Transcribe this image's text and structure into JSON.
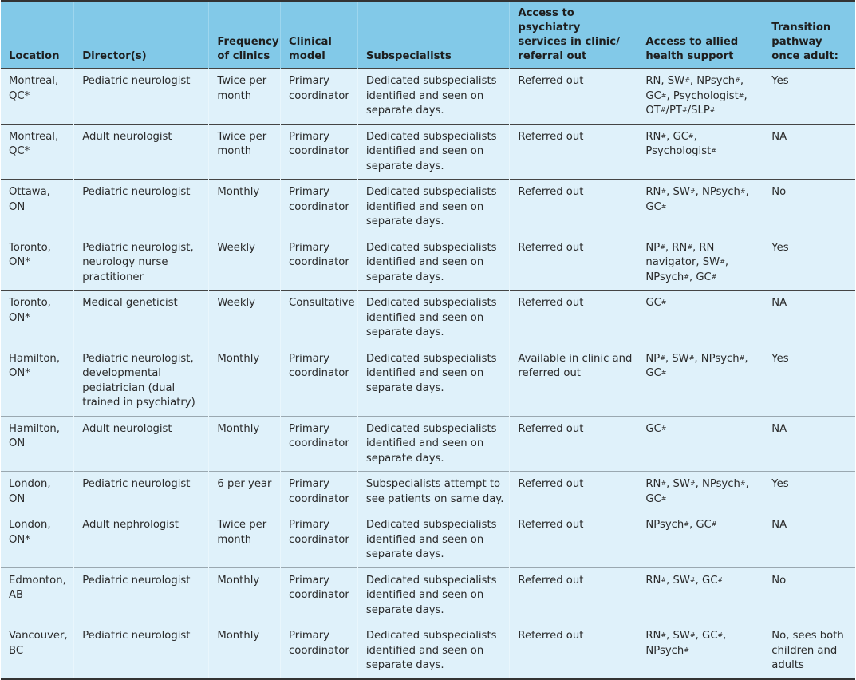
{
  "table": {
    "headers": [
      "Location",
      "Director(s)",
      "Frequency of clinics",
      "Clinical model",
      "Subspecialists",
      "Access to psychiatry services in clinic/ referral out",
      "Access to allied health support",
      "Transition pathway once adult:"
    ],
    "rows": [
      {
        "location": "Montreal, QC*",
        "directors": "Pediatric neurologist",
        "frequency": "Twice per month",
        "model": "Primary coordinator",
        "subspecialists": "Dedicated subspecialists identified and seen on separate days.",
        "psychiatry": "Referred out",
        "allied": [
          {
            "t": "RN",
            "sup": ""
          },
          {
            "t": ", SW",
            "sup": "#"
          },
          {
            "t": ", NPsych",
            "sup": "#"
          },
          {
            "t": ", GC",
            "sup": "#"
          },
          {
            "t": ", Psychologist",
            "sup": "#"
          },
          {
            "t": ", OT",
            "sup": "#"
          },
          {
            "t": "/PT",
            "sup": "#"
          },
          {
            "t": "/SLP",
            "sup": "#"
          }
        ],
        "transition": "Yes",
        "separator": "dark"
      },
      {
        "location": "Montreal, QC*",
        "directors": "Adult neurologist",
        "frequency": "Twice per month",
        "model": "Primary coordinator",
        "subspecialists": "Dedicated subspecialists identified and seen on separate days.",
        "psychiatry": "Referred out",
        "allied": [
          {
            "t": "RN",
            "sup": "#"
          },
          {
            "t": ", GC",
            "sup": "#"
          },
          {
            "t": ", Psychologist",
            "sup": "#"
          }
        ],
        "transition": "NA",
        "separator": "dark"
      },
      {
        "location": "Ottawa, ON",
        "directors": "Pediatric neurologist",
        "frequency": "Monthly",
        "model": "Primary coordinator",
        "subspecialists": "Dedicated subspecialists identified and seen on separate days.",
        "psychiatry": "Referred out",
        "allied": [
          {
            "t": "RN",
            "sup": "#"
          },
          {
            "t": ", SW",
            "sup": "#"
          },
          {
            "t": ", NPsych",
            "sup": "#"
          },
          {
            "t": ", GC",
            "sup": "#"
          }
        ],
        "transition": "No",
        "separator": "dark"
      },
      {
        "location": "Toronto, ON*",
        "directors": "Pediatric neurologist, neurology nurse practitioner",
        "frequency": "Weekly",
        "model": "Primary coordinator",
        "subspecialists": "Dedicated subspecialists identified and seen on separate days.",
        "psychiatry": "Referred out",
        "allied": [
          {
            "t": "NP",
            "sup": "#"
          },
          {
            "t": ", RN",
            "sup": "#"
          },
          {
            "t": ", RN navigator, SW",
            "sup": "#"
          },
          {
            "t": ", NPsych",
            "sup": "#"
          },
          {
            "t": ", GC",
            "sup": "#"
          }
        ],
        "transition": "Yes",
        "separator": "dark"
      },
      {
        "location": "Toronto, ON*",
        "directors": "Medical geneticist",
        "frequency": "Weekly",
        "model": "Consultative",
        "subspecialists": "Dedicated subspecialists identified and seen on separate days.",
        "psychiatry": "Referred out",
        "allied": [
          {
            "t": "GC",
            "sup": "#"
          }
        ],
        "transition": "NA",
        "separator": "light"
      },
      {
        "location": "Hamilton, ON*",
        "directors": "Pediatric neurologist, developmental pediatrician (dual trained in psychiatry)",
        "frequency": "Monthly",
        "model": "Primary coordinator",
        "subspecialists": "Dedicated subspecialists identified and seen on separate days.",
        "psychiatry": "Available in clinic and referred out",
        "allied": [
          {
            "t": "NP",
            "sup": "#"
          },
          {
            "t": ", SW",
            "sup": "#"
          },
          {
            "t": ", NPsych",
            "sup": "#"
          },
          {
            "t": ", GC",
            "sup": "#"
          }
        ],
        "transition": "Yes",
        "separator": "light"
      },
      {
        "location": "Hamilton, ON",
        "directors": "Adult neurologist",
        "frequency": "Monthly",
        "model": "Primary coordinator",
        "subspecialists": "Dedicated subspecialists identified and seen on separate days.",
        "psychiatry": "Referred out",
        "allied": [
          {
            "t": "GC",
            "sup": "#"
          }
        ],
        "transition": "NA",
        "separator": "light"
      },
      {
        "location": "London, ON",
        "directors": "Pediatric neurologist",
        "frequency": "6 per year",
        "model": "Primary coordinator",
        "subspecialists": "Subspecialists attempt to see patients on same day.",
        "psychiatry": "Referred out",
        "allied": [
          {
            "t": "RN",
            "sup": "#"
          },
          {
            "t": ", SW",
            "sup": "#"
          },
          {
            "t": ", NPsych",
            "sup": "#"
          },
          {
            "t": ", GC",
            "sup": "#"
          }
        ],
        "transition": "Yes",
        "separator": "light"
      },
      {
        "location": "London, ON*",
        "directors": "Adult nephrologist",
        "frequency": "Twice per month",
        "model": "Primary coordinator",
        "subspecialists": "Dedicated subspecialists identified and seen on separate days.",
        "psychiatry": "Referred out",
        "allied": [
          {
            "t": "NPsych",
            "sup": "#"
          },
          {
            "t": ", GC",
            "sup": "#"
          }
        ],
        "transition": "NA",
        "separator": "light"
      },
      {
        "location": "Edmonton, AB",
        "directors": "Pediatric neurologist",
        "frequency": "Monthly",
        "model": "Primary coordinator",
        "subspecialists": "Dedicated subspecialists identified and seen on separate days.",
        "psychiatry": "Referred out",
        "allied": [
          {
            "t": "RN",
            "sup": "#"
          },
          {
            "t": ", SW",
            "sup": "#"
          },
          {
            "t": ", GC",
            "sup": "#"
          }
        ],
        "transition": "No",
        "separator": "dark"
      },
      {
        "location": "Vancouver, BC",
        "directors": "Pediatric neurologist",
        "frequency": "Monthly",
        "model": "Primary coordinator",
        "subspecialists": "Dedicated subspecialists identified and seen on separate days.",
        "psychiatry": "Referred out",
        "allied": [
          {
            "t": "RN",
            "sup": "#"
          },
          {
            "t": ", SW",
            "sup": "#"
          },
          {
            "t": ", GC",
            "sup": "#"
          },
          {
            "t": ", NPsych",
            "sup": "#"
          }
        ],
        "transition": "No, sees both children and adults",
        "separator": "none"
      }
    ]
  },
  "colors": {
    "header_bg": "#82c9e8",
    "row_bg": "#dff1fa",
    "rule_dark": "#444444",
    "rule_light": "#9aa8b0"
  }
}
